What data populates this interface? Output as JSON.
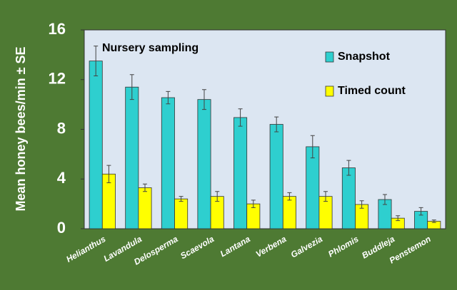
{
  "chart_data": {
    "type": "bar",
    "annotation": "Nursery sampling",
    "y_label": "Mean honey bees/min ± SE",
    "categories": [
      "Helianthus",
      "Lavandula",
      "Delosperma",
      "Scaevola",
      "Lantana",
      "Verbena",
      "Galvezia",
      "Phlomis",
      "Buddleja",
      "Penstemon"
    ],
    "series": [
      {
        "name": "Snapshot",
        "color": "#2ecfcf",
        "values": [
          13.5,
          11.4,
          10.55,
          10.4,
          8.95,
          8.4,
          6.6,
          4.9,
          2.35,
          1.4
        ],
        "errors": [
          1.2,
          1.0,
          0.5,
          0.8,
          0.7,
          0.6,
          0.9,
          0.6,
          0.4,
          0.3
        ]
      },
      {
        "name": "Timed count",
        "color": "#ffff00",
        "values": [
          4.4,
          3.3,
          2.4,
          2.6,
          2.0,
          2.6,
          2.6,
          1.95,
          0.85,
          0.6
        ],
        "errors": [
          0.7,
          0.3,
          0.2,
          0.4,
          0.3,
          0.3,
          0.4,
          0.3,
          0.2,
          0.1
        ]
      }
    ],
    "ylim": [
      0,
      16
    ],
    "yticks": [
      0,
      4,
      8,
      12,
      16
    ],
    "legend": "upper right"
  }
}
